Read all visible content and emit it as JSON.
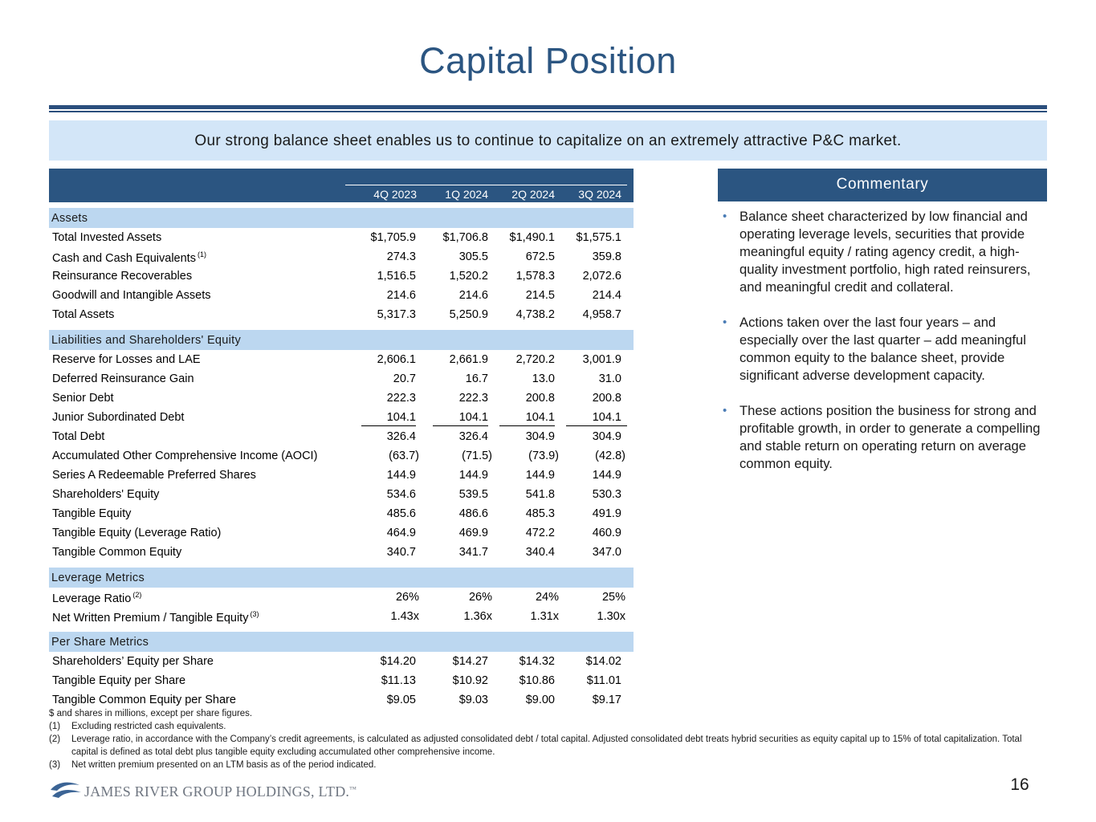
{
  "title": "Capital Position",
  "banner": "Our strong balance sheet enables us to continue to capitalize on an extremely attractive P&C market.",
  "table": {
    "columns": [
      "4Q 2023",
      "1Q 2024",
      "2Q 2024",
      "3Q 2024"
    ],
    "sections": [
      {
        "heading": "Assets",
        "rows": [
          {
            "label": "Total Invested Assets",
            "sup": "",
            "values": [
              "$1,705.9",
              "$1,706.8",
              "$1,490.1",
              "$1,575.1"
            ]
          },
          {
            "label": "Cash and Cash Equivalents",
            "sup": "(1)",
            "values": [
              "274.3",
              "305.5",
              "672.5",
              "359.8"
            ]
          },
          {
            "label": "Reinsurance Recoverables",
            "sup": "",
            "values": [
              "1,516.5",
              "1,520.2",
              "1,578.3",
              "2,072.6"
            ]
          },
          {
            "label": "Goodwill and Intangible Assets",
            "sup": "",
            "values": [
              "214.6",
              "214.6",
              "214.5",
              "214.4"
            ]
          },
          {
            "label": "Total Assets",
            "sup": "",
            "values": [
              "5,317.3",
              "5,250.9",
              "4,738.2",
              "4,958.7"
            ]
          }
        ]
      },
      {
        "heading": "Liabilities and Shareholders' Equity",
        "rows": [
          {
            "label": "Reserve for Losses and LAE",
            "sup": "",
            "values": [
              "2,606.1",
              "2,661.9",
              "2,720.2",
              "3,001.9"
            ]
          },
          {
            "label": "Deferred Reinsurance Gain",
            "sup": "",
            "values": [
              "20.7",
              "16.7",
              "13.0",
              "31.0"
            ]
          },
          {
            "label": "Senior Debt",
            "sup": "",
            "values": [
              "222.3",
              "222.3",
              "200.8",
              "200.8"
            ]
          },
          {
            "label": "Junior Subordinated Debt",
            "sup": "",
            "values": [
              "104.1",
              "104.1",
              "104.1",
              "104.1"
            ],
            "underline": true
          },
          {
            "label": "Total Debt",
            "sup": "",
            "values": [
              "326.4",
              "326.4",
              "304.9",
              "304.9"
            ]
          },
          {
            "label": "Accumulated Other Comprehensive Income (AOCI)",
            "sup": "",
            "values": [
              "(63.7)",
              "(71.5)",
              "(73.9)",
              "(42.8)"
            ],
            "paren": true
          },
          {
            "label": "Series A Redeemable Preferred Shares",
            "sup": "",
            "values": [
              "144.9",
              "144.9",
              "144.9",
              "144.9"
            ]
          },
          {
            "label": "Shareholders' Equity",
            "sup": "",
            "values": [
              "534.6",
              "539.5",
              "541.8",
              "530.3"
            ]
          },
          {
            "label": "Tangible Equity",
            "sup": "",
            "values": [
              "485.6",
              "486.6",
              "485.3",
              "491.9"
            ]
          },
          {
            "label": "Tangible Equity (Leverage Ratio)",
            "sup": "",
            "values": [
              "464.9",
              "469.9",
              "472.2",
              "460.9"
            ]
          },
          {
            "label": "Tangible Common Equity",
            "sup": "",
            "values": [
              "340.7",
              "341.7",
              "340.4",
              "347.0"
            ]
          }
        ]
      },
      {
        "heading": "Leverage Metrics",
        "rows": [
          {
            "label": "Leverage Ratio",
            "sup": "(2)",
            "values": [
              "26%",
              "26%",
              "24%",
              "25%"
            ],
            "paren": true
          },
          {
            "label": "Net Written Premium / Tangible Equity",
            "sup": "(3)",
            "values": [
              "1.43x",
              "1.36x",
              "1.31x",
              "1.30x"
            ],
            "paren": true
          }
        ]
      },
      {
        "heading": "Per Share Metrics",
        "rows": [
          {
            "label": "Shareholders’ Equity per Share",
            "sup": "",
            "values": [
              "$14.20",
              "$14.27",
              "$14.32",
              "$14.02"
            ]
          },
          {
            "label": "Tangible Equity per Share",
            "sup": "",
            "values": [
              "$11.13",
              "$10.92",
              "$10.86",
              "$11.01"
            ]
          },
          {
            "label": "Tangible Common Equity per Share",
            "sup": "",
            "values": [
              "$9.05",
              "$9.03",
              "$9.00",
              "$9.17"
            ]
          }
        ]
      }
    ]
  },
  "commentary": {
    "heading": "Commentary",
    "bullets": [
      "Balance sheet characterized by low financial and operating leverage levels, securities that provide meaningful equity / rating agency credit, a high-quality investment portfolio, high rated reinsurers, and meaningful credit and collateral.",
      "Actions taken over the last four years – and especially over the last quarter – add meaningful common equity to the balance sheet, provide significant adverse development capacity.",
      "These actions position the business for strong and profitable growth, in order to generate a compelling and stable return on operating return on average common equity."
    ]
  },
  "footnotes": {
    "intro": "$ and shares in millions, except per share figures.",
    "notes": [
      {
        "num": "(1)",
        "text": "Excluding restricted cash equivalents."
      },
      {
        "num": "(2)",
        "text": "Leverage ratio, in accordance with the Company’s credit agreements, is calculated as adjusted consolidated debt / total capital. Adjusted consolidated debt treats hybrid securities as equity capital up to 15% of total capitalization. Total capital is defined as total debt plus tangible equity excluding accumulated other comprehensive income."
      },
      {
        "num": "(3)",
        "text": "Net written premium presented on an LTM basis as of the period indicated."
      }
    ]
  },
  "logo": {
    "text": "JAMES RIVER GROUP HOLDINGS, LTD.",
    "tm": "™"
  },
  "page_number": "16",
  "colors": {
    "accent": "#2b5581",
    "section_fill": "#bcd7f0",
    "banner_fill": "#d3e6f8"
  }
}
